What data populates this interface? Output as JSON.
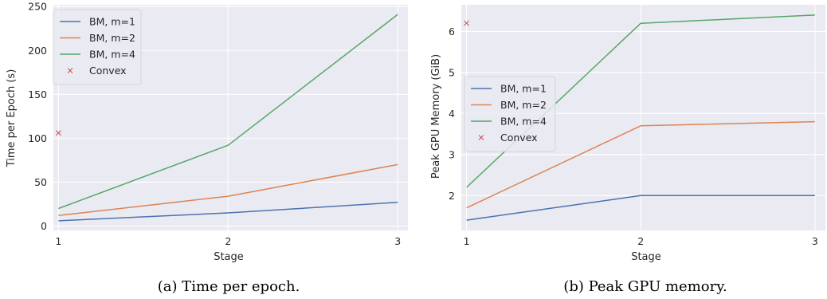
{
  "chart_data": [
    {
      "type": "line",
      "caption": "(a) Time per epoch.",
      "xlabel": "Stage",
      "ylabel": "Time per Epoch (s)",
      "x": [
        1,
        2,
        3
      ],
      "xticks": [
        "1",
        "2",
        "3"
      ],
      "xlim": [
        0.97,
        3.06
      ],
      "ylim": [
        -5,
        252
      ],
      "yticks": [
        "0",
        "50",
        "100",
        "150",
        "200",
        "250"
      ],
      "grid": true,
      "legend_position": "top-left",
      "series": [
        {
          "name": "BM, m=1",
          "color": "#4c72b0",
          "values": [
            6,
            15,
            27
          ]
        },
        {
          "name": "BM, m=2",
          "color": "#dd8452",
          "values": [
            12,
            34,
            70
          ]
        },
        {
          "name": "BM, m=4",
          "color": "#55a868",
          "values": [
            20,
            92,
            241
          ]
        }
      ],
      "scatter": {
        "name": "Convex",
        "color": "#c44e52",
        "marker": "x",
        "x": 1,
        "y": 106
      }
    },
    {
      "type": "line",
      "caption": "(b) Peak GPU memory.",
      "xlabel": "Stage",
      "ylabel": "Peak GPU Memory (GiB)",
      "x": [
        1,
        2,
        3
      ],
      "xticks": [
        "1",
        "2",
        "3"
      ],
      "xlim": [
        0.97,
        3.06
      ],
      "ylim": [
        1.15,
        6.65
      ],
      "yticks": [
        "2",
        "3",
        "4",
        "5",
        "6"
      ],
      "grid": true,
      "legend_position": "center-left",
      "series": [
        {
          "name": "BM, m=1",
          "color": "#4c72b0",
          "values": [
            1.4,
            2.0,
            2.0
          ]
        },
        {
          "name": "BM, m=2",
          "color": "#dd8452",
          "values": [
            1.7,
            3.7,
            3.8
          ]
        },
        {
          "name": "BM, m=4",
          "color": "#55a868",
          "values": [
            2.2,
            6.2,
            6.4
          ]
        }
      ],
      "scatter": {
        "name": "Convex",
        "color": "#c44e52",
        "marker": "x",
        "x": 1,
        "y": 6.2
      }
    }
  ]
}
